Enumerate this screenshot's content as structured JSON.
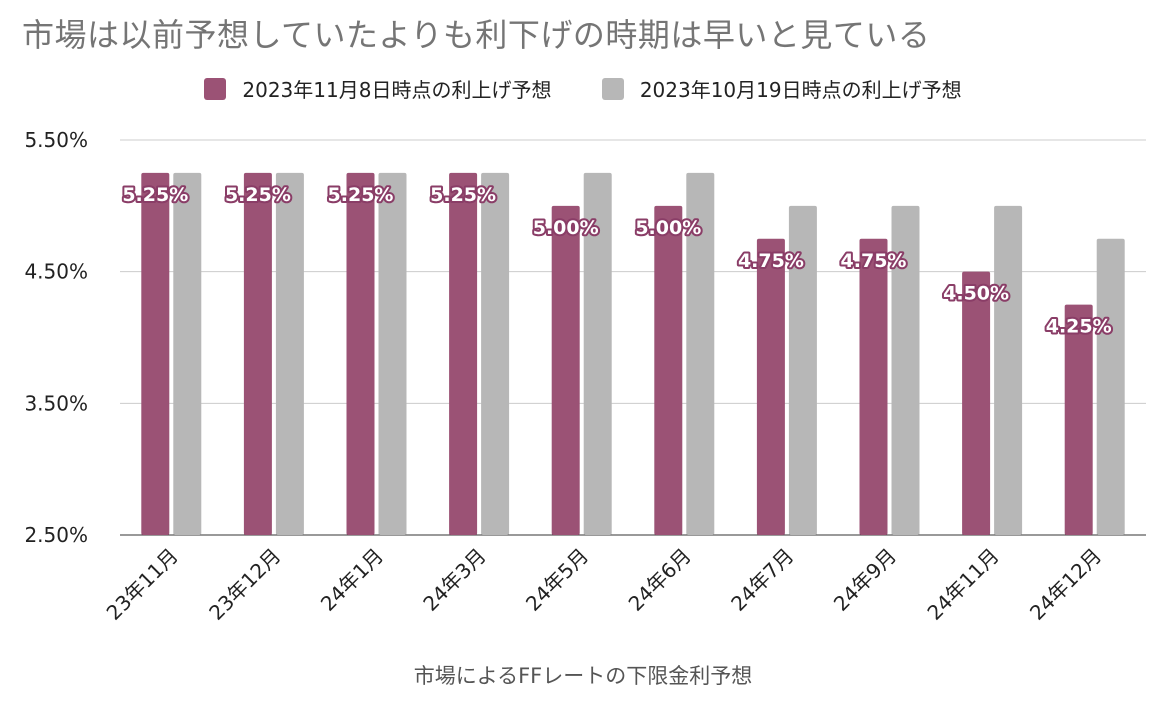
{
  "chart_data": {
    "type": "bar",
    "title": "市場は以前予想していたよりも利下げの時期は早いと見ている",
    "xlabel": "市場によるFFレートの下限金利予想",
    "ylabel": "",
    "categories": [
      "23年11月",
      "23年12月",
      "24年1月",
      "24年3月",
      "24年5月",
      "24年6月",
      "24年7月",
      "24年9月",
      "24年11月",
      "24年12月"
    ],
    "series": [
      {
        "name": "2023年11月8日時点の利上げ予想",
        "color": "#9b5275",
        "values": [
          5.25,
          5.25,
          5.25,
          5.25,
          5.0,
          5.0,
          4.75,
          4.75,
          4.5,
          4.25
        ],
        "data_labels": [
          "5.25%",
          "5.25%",
          "5.25%",
          "5.25%",
          "5.00%",
          "5.00%",
          "4.75%",
          "4.75%",
          "4.50%",
          "4.25%"
        ]
      },
      {
        "name": "2023年10月19日時点の利上げ予想",
        "color": "#b7b7b7",
        "values": [
          5.25,
          5.25,
          5.25,
          5.25,
          5.25,
          5.25,
          5.0,
          5.0,
          5.0,
          4.75
        ]
      }
    ],
    "ylim": [
      2.5,
      5.5
    ],
    "yticks": [
      5.5,
      4.5,
      3.5,
      2.5
    ],
    "ytick_labels": [
      "5.50%",
      "4.50%",
      "3.50%",
      "2.50%"
    ],
    "grid": true,
    "legend_position": "top"
  }
}
